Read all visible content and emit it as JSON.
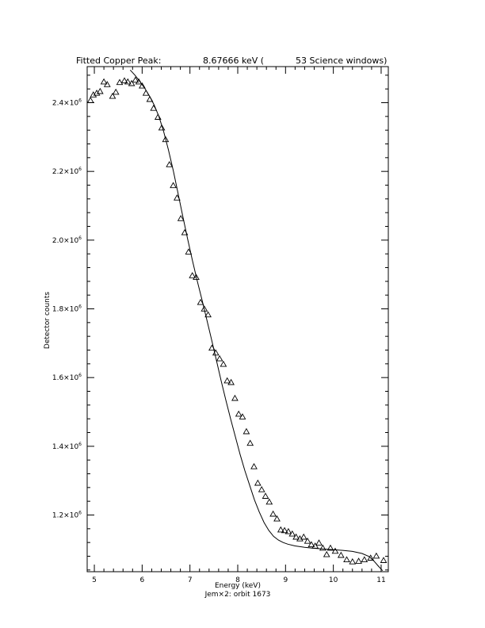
{
  "chart_data": {
    "type": "scatter",
    "title_parts": [
      "Fitted Copper Peak:",
      "8.67666 keV (",
      "53 Science windows)"
    ],
    "xlabel": "Energy (keV)",
    "ylabel": "Detector counts",
    "footer": "Jem×2: orbit 1673",
    "xlim": [
      4.85,
      11.15
    ],
    "ylim": [
      1035000,
      2505000
    ],
    "x_ticks": [
      5,
      6,
      7,
      8,
      9,
      10,
      11
    ],
    "x_tick_labels": [
      "5",
      "6",
      "7",
      "8",
      "9",
      "10",
      "11"
    ],
    "y_ticks": [
      1200000,
      1400000,
      1600000,
      1800000,
      2000000,
      2200000,
      2400000
    ],
    "y_tick_labels": [
      {
        "mantissa": "1.2×10",
        "exp": "6"
      },
      {
        "mantissa": "1.4×10",
        "exp": "6"
      },
      {
        "mantissa": "1.6×10",
        "exp": "6"
      },
      {
        "mantissa": "1.8×10",
        "exp": "6"
      },
      {
        "mantissa": "2.0×10",
        "exp": "6"
      },
      {
        "mantissa": "2.2×10",
        "exp": "6"
      },
      {
        "mantissa": "2.4×10",
        "exp": "6"
      }
    ],
    "grid": false,
    "series": [
      {
        "kind": "data",
        "marker": "triangle",
        "points": [
          [
            4.92,
            2407000
          ],
          [
            4.98,
            2423000
          ],
          [
            5.05,
            2428000
          ],
          [
            5.12,
            2433000
          ],
          [
            5.2,
            2461000
          ],
          [
            5.27,
            2453000
          ],
          [
            5.38,
            2419000
          ],
          [
            5.45,
            2431000
          ],
          [
            5.53,
            2459000
          ],
          [
            5.63,
            2464000
          ],
          [
            5.7,
            2461000
          ],
          [
            5.78,
            2456000
          ],
          [
            5.86,
            2466000
          ],
          [
            5.93,
            2461000
          ],
          [
            6.0,
            2449000
          ],
          [
            6.08,
            2428000
          ],
          [
            6.16,
            2410000
          ],
          [
            6.24,
            2384000
          ],
          [
            6.33,
            2358000
          ],
          [
            6.41,
            2327000
          ],
          [
            6.49,
            2293000
          ],
          [
            6.57,
            2220000
          ],
          [
            6.65,
            2159000
          ],
          [
            6.73,
            2123000
          ],
          [
            6.81,
            2063000
          ],
          [
            6.89,
            2022000
          ],
          [
            6.97,
            1966000
          ],
          [
            7.05,
            1897000
          ],
          [
            7.13,
            1892000
          ],
          [
            7.22,
            1819000
          ],
          [
            7.3,
            1800000
          ],
          [
            7.38,
            1783000
          ],
          [
            7.46,
            1686000
          ],
          [
            7.54,
            1672000
          ],
          [
            7.62,
            1655000
          ],
          [
            7.7,
            1639000
          ],
          [
            7.78,
            1591000
          ],
          [
            7.86,
            1586000
          ],
          [
            7.94,
            1540000
          ],
          [
            8.02,
            1494000
          ],
          [
            8.1,
            1486000
          ],
          [
            8.18,
            1443000
          ],
          [
            8.26,
            1409000
          ],
          [
            8.34,
            1341000
          ],
          [
            8.42,
            1293000
          ],
          [
            8.5,
            1274000
          ],
          [
            8.58,
            1255000
          ],
          [
            8.66,
            1238000
          ],
          [
            8.74,
            1203000
          ],
          [
            8.82,
            1189000
          ],
          [
            8.9,
            1157000
          ],
          [
            8.98,
            1155000
          ],
          [
            9.06,
            1152000
          ],
          [
            9.14,
            1145000
          ],
          [
            9.22,
            1136000
          ],
          [
            9.3,
            1131000
          ],
          [
            9.38,
            1136000
          ],
          [
            9.46,
            1124000
          ],
          [
            9.54,
            1114000
          ],
          [
            9.62,
            1110000
          ],
          [
            9.7,
            1119000
          ],
          [
            9.78,
            1104000
          ],
          [
            9.86,
            1085000
          ],
          [
            9.94,
            1104000
          ],
          [
            10.04,
            1095000
          ],
          [
            10.16,
            1083000
          ],
          [
            10.28,
            1070000
          ],
          [
            10.4,
            1064000
          ],
          [
            10.53,
            1066000
          ],
          [
            10.65,
            1070000
          ],
          [
            10.78,
            1075000
          ],
          [
            10.9,
            1081000
          ],
          [
            11.05,
            1068000
          ]
        ]
      },
      {
        "kind": "fit",
        "line": "solid",
        "points": [
          [
            5.75,
            2495000
          ],
          [
            5.85,
            2480000
          ],
          [
            5.95,
            2462000
          ],
          [
            6.05,
            2443000
          ],
          [
            6.15,
            2420000
          ],
          [
            6.25,
            2394000
          ],
          [
            6.35,
            2360000
          ],
          [
            6.45,
            2316000
          ],
          [
            6.55,
            2263000
          ],
          [
            6.65,
            2203000
          ],
          [
            6.75,
            2137000
          ],
          [
            6.85,
            2070000
          ],
          [
            6.95,
            2004000
          ],
          [
            7.05,
            1942000
          ],
          [
            7.15,
            1883000
          ],
          [
            7.25,
            1827000
          ],
          [
            7.35,
            1770000
          ],
          [
            7.45,
            1712000
          ],
          [
            7.55,
            1652000
          ],
          [
            7.65,
            1592000
          ],
          [
            7.75,
            1535000
          ],
          [
            7.85,
            1480000
          ],
          [
            7.95,
            1428000
          ],
          [
            8.05,
            1376000
          ],
          [
            8.15,
            1329000
          ],
          [
            8.25,
            1286000
          ],
          [
            8.35,
            1244000
          ],
          [
            8.45,
            1209000
          ],
          [
            8.55,
            1178000
          ],
          [
            8.65,
            1155000
          ],
          [
            8.75,
            1138000
          ],
          [
            8.85,
            1127000
          ],
          [
            8.95,
            1120000
          ],
          [
            9.05,
            1115000
          ],
          [
            9.2,
            1110000
          ],
          [
            9.4,
            1106000
          ],
          [
            9.6,
            1103000
          ],
          [
            9.8,
            1101000
          ],
          [
            10.0,
            1099000
          ],
          [
            10.2,
            1097000
          ],
          [
            10.4,
            1094000
          ],
          [
            10.6,
            1088000
          ],
          [
            10.75,
            1079000
          ],
          [
            10.85,
            1066000
          ],
          [
            10.95,
            1050000
          ],
          [
            11.03,
            1038000
          ]
        ]
      }
    ]
  }
}
